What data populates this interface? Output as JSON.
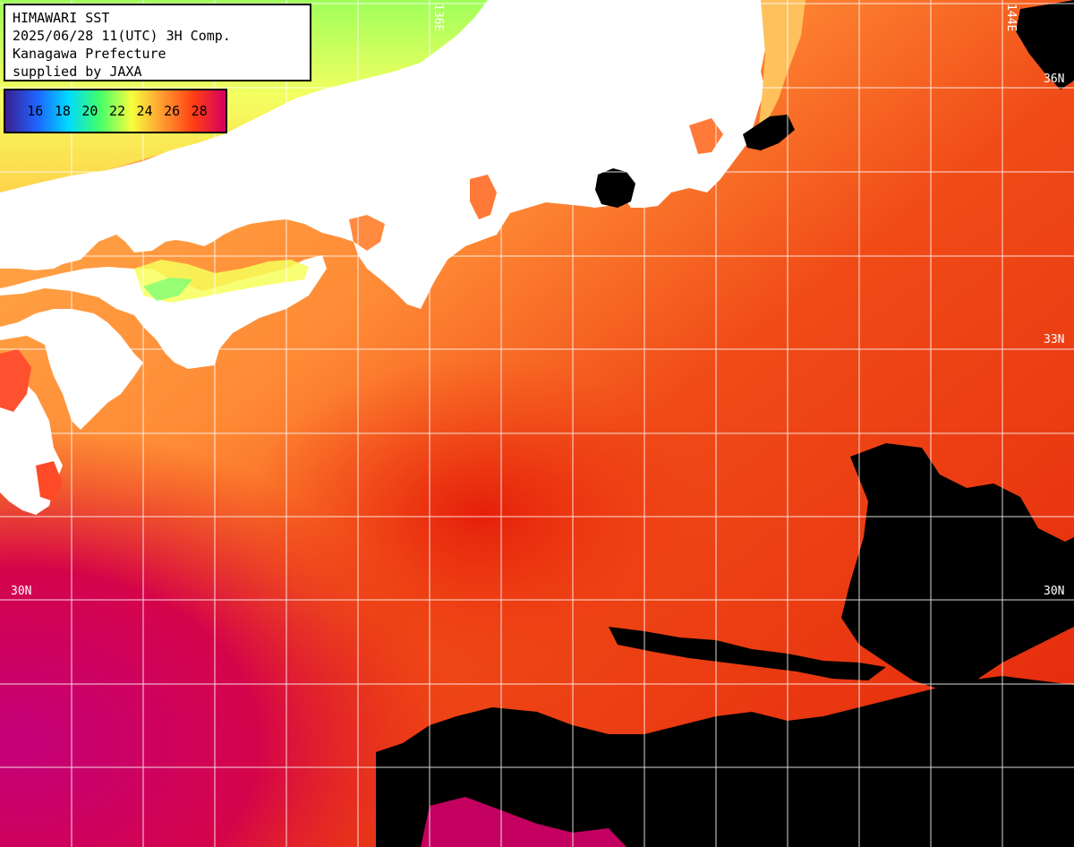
{
  "header": {
    "lines": [
      "HIMAWARI SST",
      "2025/06/28 11(UTC) 3H Comp.",
      "Kanagawa Prefecture",
      "supplied by JAXA"
    ]
  },
  "legend": {
    "ticks": [
      "16",
      "18",
      "20",
      "22",
      "24",
      "26",
      "28"
    ],
    "gradient_colors": [
      "#3a1f8f",
      "#1f62ff",
      "#00d9ff",
      "#42ff6a",
      "#f6ff3f",
      "#ff9a2f",
      "#ff3d14",
      "#d4005f"
    ]
  },
  "grid": {
    "lat_labels": [
      {
        "text": "36N"
      },
      {
        "text": "33N"
      },
      {
        "text": "30N"
      },
      {
        "text": "30N"
      }
    ],
    "lon_labels": [
      {
        "text": "136E"
      },
      {
        "text": "144E"
      }
    ]
  },
  "colors": {
    "land": "#ffffff",
    "missing": "#000000",
    "sea_warm": "#e8270d",
    "sea_hot": "#c9006c",
    "sea_mid": "#ff7a2e",
    "sea_cool": "#ffad4a",
    "coastal_green": "#84ff66",
    "coastal_yellow": "#ffdf55",
    "grid": "#ffffff"
  }
}
